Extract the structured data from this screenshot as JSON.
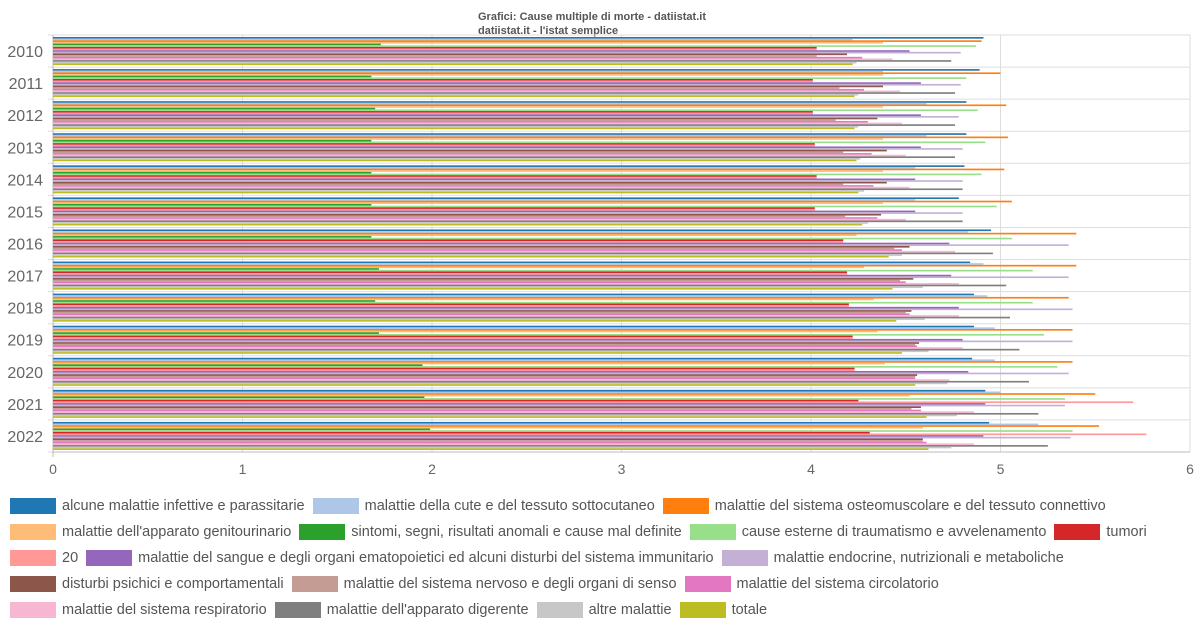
{
  "chart_data": {
    "type": "bar",
    "orientation": "horizontal",
    "title": "Grafici: Cause multiple di morte - datiistat.it",
    "subtitle": "datiistat.it - l'istat semplice",
    "categories": [
      "2010",
      "2011",
      "2012",
      "2013",
      "2014",
      "2015",
      "2016",
      "2017",
      "2018",
      "2019",
      "2020",
      "2021",
      "2022"
    ],
    "xlim": [
      0,
      6
    ],
    "xticks": [
      "0",
      "1",
      "2",
      "3",
      "4",
      "5",
      "6"
    ],
    "grid": true,
    "legend_position": "bottom",
    "series": [
      {
        "name": "alcune malattie infettive e parassitarie",
        "color": "#1f77b4",
        "values": [
          4.91,
          4.89,
          4.82,
          4.82,
          4.81,
          4.78,
          4.95,
          4.84,
          4.86,
          4.86,
          4.85,
          4.92,
          4.94
        ]
      },
      {
        "name": "malattie della cute e del tessuto sottocutaneo",
        "color": "#aec7e8",
        "values": [
          4.22,
          4.38,
          4.61,
          4.61,
          4.55,
          4.55,
          4.83,
          4.91,
          4.93,
          4.97,
          4.97,
          5.0,
          5.2
        ]
      },
      {
        "name": "malattie del sistema osteomuscolare e del tessuto connettivo",
        "color": "#ff7f0e",
        "values": [
          4.9,
          5.0,
          5.03,
          5.04,
          5.02,
          5.06,
          5.4,
          5.4,
          5.36,
          5.38,
          5.38,
          5.5,
          5.52
        ]
      },
      {
        "name": "malattie dell'apparato genitourinario",
        "color": "#ffbb78",
        "values": [
          4.38,
          4.38,
          4.38,
          4.38,
          4.38,
          4.38,
          4.24,
          4.28,
          4.33,
          4.35,
          4.39,
          4.52,
          4.59
        ]
      },
      {
        "name": "sintomi, segni, risultati anomali e cause mal definite",
        "color": "#2ca02c",
        "values": [
          1.73,
          1.68,
          1.7,
          1.68,
          1.68,
          1.68,
          1.68,
          1.72,
          1.7,
          1.72,
          1.95,
          1.96,
          1.99
        ]
      },
      {
        "name": "cause esterne di traumatismo e avvelenamento",
        "color": "#98df8a",
        "values": [
          4.87,
          4.82,
          4.88,
          4.92,
          4.9,
          4.98,
          5.06,
          5.17,
          5.17,
          5.23,
          5.3,
          5.34,
          5.38
        ]
      },
      {
        "name": "tumori",
        "color": "#d62728",
        "values": [
          4.03,
          4.01,
          4.01,
          4.02,
          4.03,
          4.02,
          4.17,
          4.19,
          4.2,
          4.22,
          4.23,
          4.25,
          4.31
        ]
      },
      {
        "name": "20",
        "color": "#ff9896",
        "values": [
          4.03,
          4.01,
          4.01,
          4.02,
          4.03,
          4.02,
          4.17,
          4.19,
          4.2,
          4.22,
          4.23,
          5.7,
          5.77
        ]
      },
      {
        "name": "malattie del sangue e degli organi ematopoietici ed alcuni disturbi del sistema immunitario",
        "color": "#9467bd",
        "values": [
          4.52,
          4.58,
          4.58,
          4.58,
          4.55,
          4.55,
          4.73,
          4.74,
          4.78,
          4.8,
          4.83,
          4.92,
          4.91
        ]
      },
      {
        "name": "malattie endocrine, nutrizionali e metaboliche",
        "color": "#c5b0d5",
        "values": [
          4.79,
          4.79,
          4.78,
          4.8,
          4.8,
          4.8,
          5.36,
          5.36,
          5.38,
          5.38,
          5.36,
          5.34,
          5.37
        ]
      },
      {
        "name": "disturbi psichici e comportamentali",
        "color": "#8c564b",
        "values": [
          4.19,
          4.38,
          4.35,
          4.4,
          4.4,
          4.37,
          4.52,
          4.54,
          4.53,
          4.57,
          4.56,
          4.58,
          4.59
        ]
      },
      {
        "name": "malattie del sistema nervoso e degli organi di senso",
        "color": "#c49c94",
        "values": [
          4.03,
          4.15,
          4.13,
          4.17,
          4.17,
          4.18,
          4.44,
          4.47,
          4.5,
          4.55,
          4.55,
          4.53,
          4.59
        ]
      },
      {
        "name": "malattie del sistema circolatorio",
        "color": "#e377c2",
        "values": [
          4.27,
          4.28,
          4.3,
          4.32,
          4.33,
          4.35,
          4.48,
          4.5,
          4.52,
          4.56,
          4.55,
          4.58,
          4.61
        ]
      },
      {
        "name": "malattie del sistema respiratorio",
        "color": "#f7b6d2",
        "values": [
          4.43,
          4.47,
          4.48,
          4.5,
          4.52,
          4.5,
          4.76,
          4.78,
          4.78,
          4.8,
          4.73,
          4.86,
          4.86
        ]
      },
      {
        "name": "malattie dell'apparato digerente",
        "color": "#7f7f7f",
        "values": [
          4.74,
          4.76,
          4.76,
          4.76,
          4.8,
          4.8,
          4.96,
          5.03,
          5.05,
          5.1,
          5.15,
          5.2,
          5.25
        ]
      },
      {
        "name": "altre malattie",
        "color": "#c7c7c7",
        "values": [
          4.24,
          4.25,
          4.25,
          4.26,
          4.28,
          4.3,
          4.48,
          4.59,
          4.6,
          4.62,
          4.72,
          4.77,
          4.74
        ]
      },
      {
        "name": "totale",
        "color": "#bcbd22",
        "values": [
          4.22,
          4.23,
          4.23,
          4.24,
          4.25,
          4.27,
          4.41,
          4.43,
          4.45,
          4.48,
          4.55,
          4.61,
          4.62
        ]
      }
    ]
  }
}
